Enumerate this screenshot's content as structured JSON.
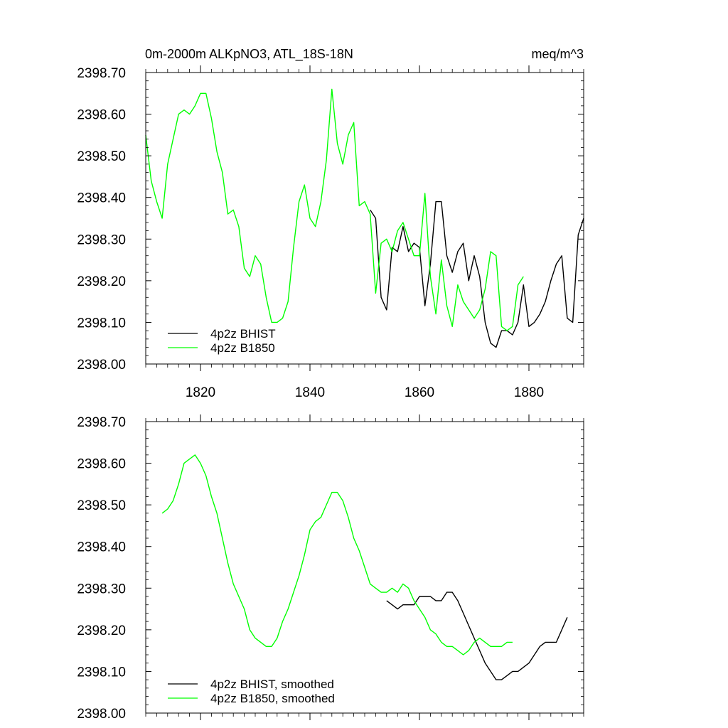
{
  "colors": {
    "bhist": "#000000",
    "b1850": "#00ff00",
    "axis": "#000000",
    "background": "#ffffff"
  },
  "chart_data": [
    {
      "type": "line",
      "title_left": "0m-2000m ALKpNO3, ATL_18S-18N",
      "title_right": "meq/m^3",
      "xlabel": "",
      "ylabel": "",
      "xlim": [
        1810,
        1890
      ],
      "ylim": [
        2398.0,
        2398.7
      ],
      "x_ticks": [
        1820,
        1840,
        1860,
        1880
      ],
      "x_tick_labels": [
        "1820",
        "1840",
        "1860",
        "1880"
      ],
      "y_ticks": [
        2398.0,
        2398.1,
        2398.2,
        2398.3,
        2398.4,
        2398.5,
        2398.6,
        2398.7
      ],
      "y_tick_labels": [
        "2398.00",
        "2398.10",
        "2398.20",
        "2398.30",
        "2398.40",
        "2398.50",
        "2398.60",
        "2398.70"
      ],
      "legend_position": "bottom-left",
      "series": [
        {
          "name": "4p2z BHIST",
          "color": "#000000",
          "x": [
            1851,
            1852,
            1853,
            1854,
            1855,
            1856,
            1857,
            1858,
            1859,
            1860,
            1861,
            1862,
            1863,
            1864,
            1865,
            1866,
            1867,
            1868,
            1869,
            1870,
            1871,
            1872,
            1873,
            1874,
            1875,
            1876,
            1877,
            1878,
            1879,
            1880,
            1881,
            1882,
            1883,
            1884,
            1885,
            1886,
            1887,
            1888,
            1889,
            1890
          ],
          "y": [
            2398.37,
            2398.35,
            2398.16,
            2398.13,
            2398.28,
            2398.27,
            2398.33,
            2398.27,
            2398.29,
            2398.28,
            2398.14,
            2398.24,
            2398.39,
            2398.39,
            2398.26,
            2398.22,
            2398.27,
            2398.29,
            2398.2,
            2398.26,
            2398.21,
            2398.1,
            2398.05,
            2398.04,
            2398.08,
            2398.08,
            2398.07,
            2398.1,
            2398.19,
            2398.09,
            2398.1,
            2398.12,
            2398.15,
            2398.2,
            2398.24,
            2398.26,
            2398.11,
            2398.1,
            2398.31,
            2398.35
          ]
        },
        {
          "name": "4p2z B1850",
          "color": "#00ff00",
          "x": [
            1810,
            1811,
            1812,
            1813,
            1814,
            1815,
            1816,
            1817,
            1818,
            1819,
            1820,
            1821,
            1822,
            1823,
            1824,
            1825,
            1826,
            1827,
            1828,
            1829,
            1830,
            1831,
            1832,
            1833,
            1834,
            1835,
            1836,
            1837,
            1838,
            1839,
            1840,
            1841,
            1842,
            1843,
            1844,
            1845,
            1846,
            1847,
            1848,
            1849,
            1850,
            1851,
            1852,
            1853,
            1854,
            1855,
            1856,
            1857,
            1858,
            1859,
            1860,
            1861,
            1862,
            1863,
            1864,
            1865,
            1866,
            1867,
            1868,
            1869,
            1870,
            1871,
            1872,
            1873,
            1874,
            1875,
            1876,
            1877,
            1878,
            1879
          ],
          "y": [
            2398.55,
            2398.44,
            2398.39,
            2398.35,
            2398.48,
            2398.54,
            2398.6,
            2398.61,
            2398.6,
            2398.62,
            2398.65,
            2398.65,
            2398.59,
            2398.51,
            2398.46,
            2398.36,
            2398.37,
            2398.33,
            2398.23,
            2398.21,
            2398.26,
            2398.24,
            2398.16,
            2398.1,
            2398.1,
            2398.11,
            2398.15,
            2398.28,
            2398.39,
            2398.43,
            2398.35,
            2398.33,
            2398.39,
            2398.49,
            2398.66,
            2398.53,
            2398.48,
            2398.55,
            2398.58,
            2398.38,
            2398.39,
            2398.36,
            2398.17,
            2398.29,
            2398.3,
            2398.27,
            2398.32,
            2398.34,
            2398.3,
            2398.26,
            2398.26,
            2398.41,
            2398.21,
            2398.12,
            2398.25,
            2398.14,
            2398.09,
            2398.19,
            2398.15,
            2398.13,
            2398.11,
            2398.13,
            2398.18,
            2398.27,
            2398.26,
            2398.09,
            2398.08,
            2398.09,
            2398.19,
            2398.21
          ]
        }
      ]
    },
    {
      "type": "line",
      "xlabel": "",
      "ylabel": "",
      "xlim": [
        1810,
        1890
      ],
      "ylim": [
        2398.0,
        2398.7
      ],
      "x_ticks": [
        1820,
        1840,
        1860,
        1880
      ],
      "y_ticks": [
        2398.0,
        2398.1,
        2398.2,
        2398.3,
        2398.4,
        2398.5,
        2398.6,
        2398.7
      ],
      "y_tick_labels": [
        "2398.00",
        "2398.10",
        "2398.20",
        "2398.30",
        "2398.40",
        "2398.50",
        "2398.60",
        "2398.70"
      ],
      "legend_position": "bottom-left",
      "series": [
        {
          "name": "4p2z BHIST, smoothed",
          "color": "#000000",
          "x": [
            1854,
            1855,
            1856,
            1857,
            1858,
            1859,
            1860,
            1861,
            1862,
            1863,
            1864,
            1865,
            1866,
            1867,
            1868,
            1869,
            1870,
            1871,
            1872,
            1873,
            1874,
            1875,
            1876,
            1877,
            1878,
            1879,
            1880,
            1881,
            1882,
            1883,
            1884,
            1885,
            1886,
            1887
          ],
          "y": [
            2398.27,
            2398.26,
            2398.25,
            2398.26,
            2398.26,
            2398.26,
            2398.28,
            2398.28,
            2398.28,
            2398.27,
            2398.27,
            2398.29,
            2398.29,
            2398.27,
            2398.24,
            2398.21,
            2398.18,
            2398.15,
            2398.12,
            2398.1,
            2398.08,
            2398.08,
            2398.09,
            2398.1,
            2398.1,
            2398.11,
            2398.12,
            2398.14,
            2398.16,
            2398.17,
            2398.17,
            2398.17,
            2398.2,
            2398.23
          ]
        },
        {
          "name": "4p2z B1850, smoothed",
          "color": "#00ff00",
          "x": [
            1813,
            1814,
            1815,
            1816,
            1817,
            1818,
            1819,
            1820,
            1821,
            1822,
            1823,
            1824,
            1825,
            1826,
            1827,
            1828,
            1829,
            1830,
            1831,
            1832,
            1833,
            1834,
            1835,
            1836,
            1837,
            1838,
            1839,
            1840,
            1841,
            1842,
            1843,
            1844,
            1845,
            1846,
            1847,
            1848,
            1849,
            1850,
            1851,
            1852,
            1853,
            1854,
            1855,
            1856,
            1857,
            1858,
            1859,
            1860,
            1861,
            1862,
            1863,
            1864,
            1865,
            1866,
            1867,
            1868,
            1869,
            1870,
            1871,
            1872,
            1873,
            1874,
            1875,
            1876,
            1877
          ],
          "y": [
            2398.48,
            2398.49,
            2398.51,
            2398.55,
            2398.6,
            2398.61,
            2398.62,
            2398.6,
            2398.57,
            2398.52,
            2398.48,
            2398.42,
            2398.36,
            2398.31,
            2398.28,
            2398.25,
            2398.2,
            2398.18,
            2398.17,
            2398.16,
            2398.16,
            2398.18,
            2398.22,
            2398.25,
            2398.29,
            2398.33,
            2398.38,
            2398.44,
            2398.46,
            2398.47,
            2398.5,
            2398.53,
            2398.53,
            2398.51,
            2398.47,
            2398.42,
            2398.39,
            2398.35,
            2398.31,
            2398.3,
            2398.29,
            2398.29,
            2398.3,
            2398.29,
            2398.31,
            2398.3,
            2398.27,
            2398.25,
            2398.23,
            2398.2,
            2398.19,
            2398.17,
            2398.16,
            2398.16,
            2398.15,
            2398.14,
            2398.15,
            2398.17,
            2398.18,
            2398.17,
            2398.16,
            2398.16,
            2398.16,
            2398.17,
            2398.17
          ]
        }
      ]
    }
  ]
}
